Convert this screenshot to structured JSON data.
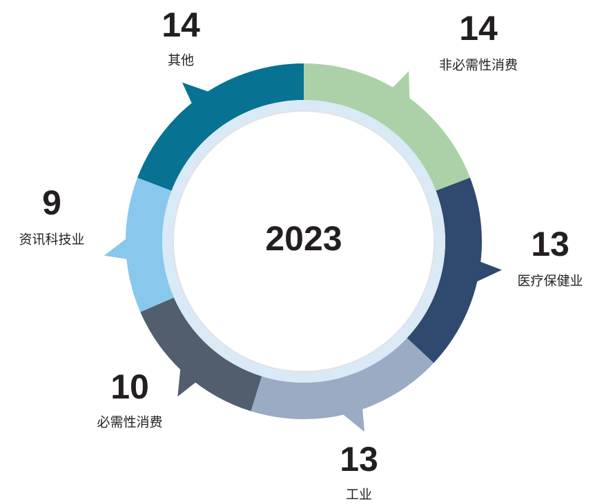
{
  "chart_data": {
    "type": "donut",
    "center_text": "2023",
    "categories": [
      "非必需性消费",
      "医疗保健业",
      "工业",
      "必需性消费",
      "资讯科技业",
      "其他"
    ],
    "values": [
      14,
      13,
      13,
      10,
      9,
      14
    ],
    "colors": [
      "#acd1a9",
      "#30496f",
      "#9aabc3",
      "#525e6e",
      "#88c8ec",
      "#087293"
    ]
  }
}
